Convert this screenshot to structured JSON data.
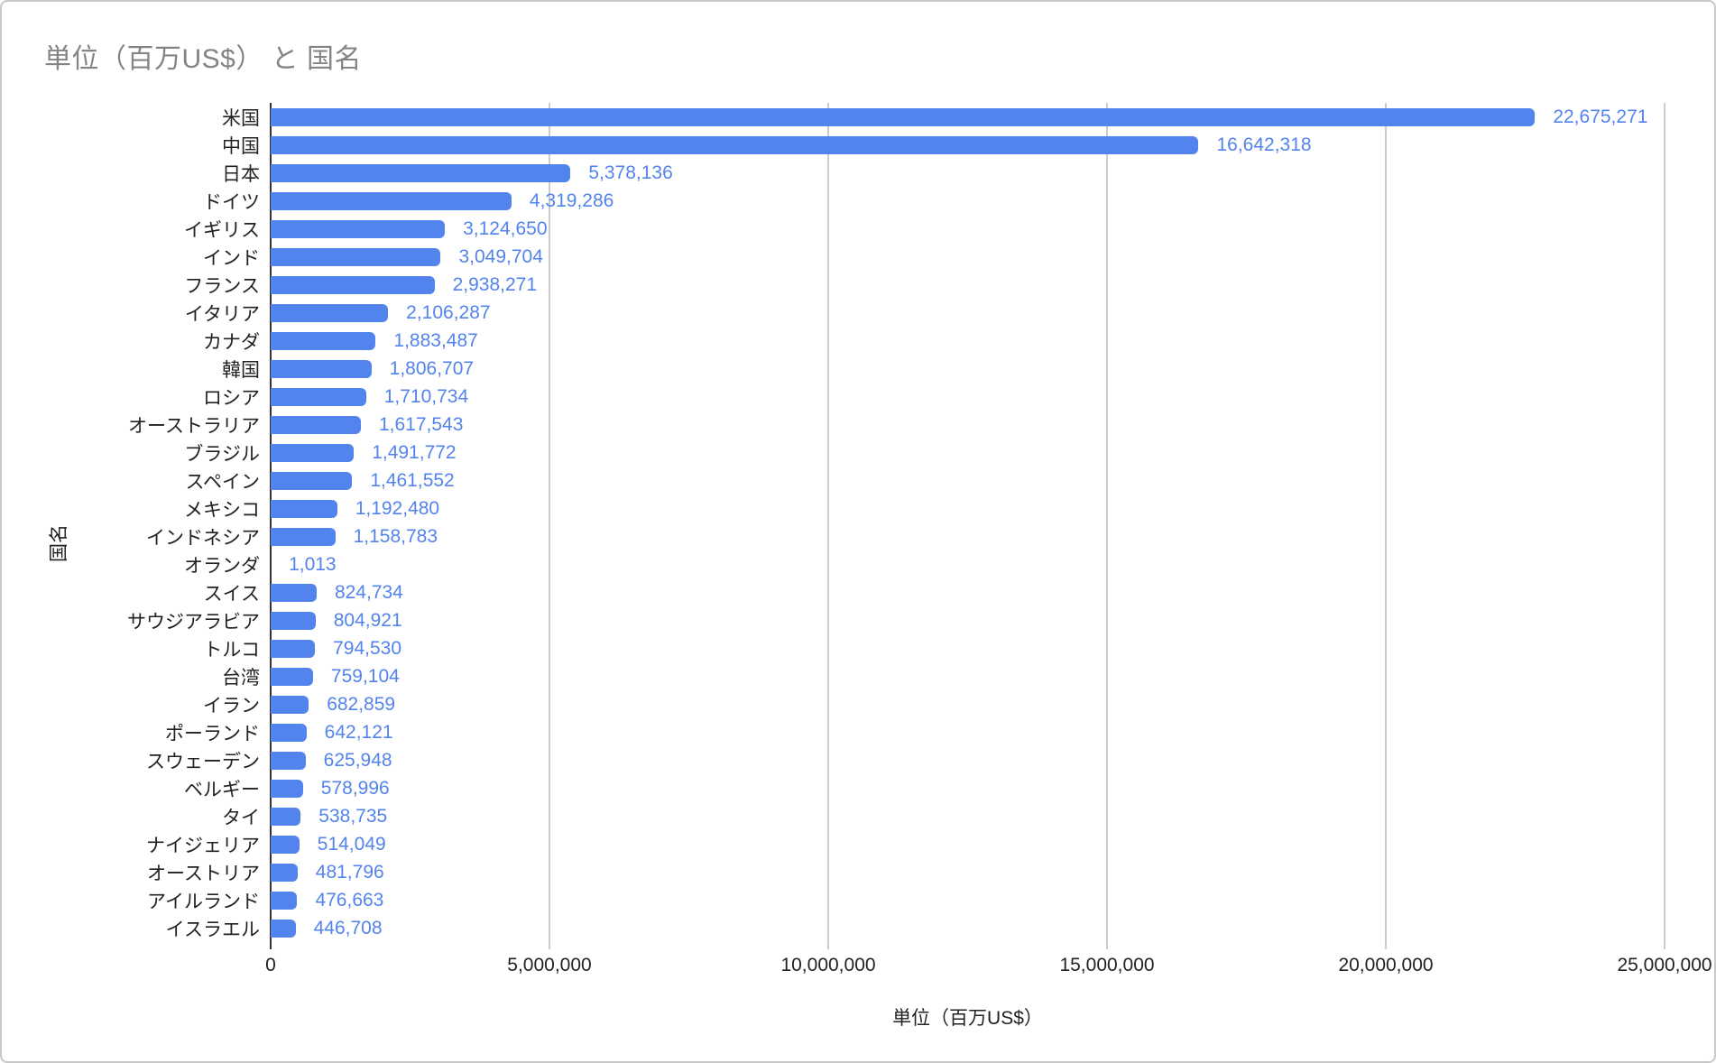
{
  "colors": {
    "bar": "#5383ec",
    "value_label": "#5383ec",
    "title": "#848484",
    "axis_text": "#222222",
    "gridline": "#cccccc",
    "axis_line": "#333333",
    "border": "#c8c8c8",
    "background": "#ffffff"
  },
  "chart_data": {
    "type": "bar",
    "orientation": "horizontal",
    "title": "単位（百万US$） と 国名",
    "xlabel": "単位（百万US$）",
    "ylabel": "国名",
    "xlim": [
      0,
      25000000
    ],
    "grid": true,
    "legend": false,
    "x_ticks": [
      {
        "value": 0,
        "label": "0"
      },
      {
        "value": 5000000,
        "label": "5,000,000"
      },
      {
        "value": 10000000,
        "label": "10,000,000"
      },
      {
        "value": 15000000,
        "label": "15,000,000"
      },
      {
        "value": 20000000,
        "label": "20,000,000"
      },
      {
        "value": 25000000,
        "label": "25,000,000"
      }
    ],
    "bars": [
      {
        "category": "米国",
        "value": 22675271,
        "label": "22,675,271"
      },
      {
        "category": "中国",
        "value": 16642318,
        "label": "16,642,318"
      },
      {
        "category": "日本",
        "value": 5378136,
        "label": "5,378,136"
      },
      {
        "category": "ドイツ",
        "value": 4319286,
        "label": "4,319,286"
      },
      {
        "category": "イギリス",
        "value": 3124650,
        "label": "3,124,650"
      },
      {
        "category": "インド",
        "value": 3049704,
        "label": "3,049,704"
      },
      {
        "category": "フランス",
        "value": 2938271,
        "label": "2,938,271"
      },
      {
        "category": "イタリア",
        "value": 2106287,
        "label": "2,106,287"
      },
      {
        "category": "カナダ",
        "value": 1883487,
        "label": "1,883,487"
      },
      {
        "category": "韓国",
        "value": 1806707,
        "label": "1,806,707"
      },
      {
        "category": "ロシア",
        "value": 1710734,
        "label": "1,710,734"
      },
      {
        "category": "オーストラリア",
        "value": 1617543,
        "label": "1,617,543"
      },
      {
        "category": "ブラジル",
        "value": 1491772,
        "label": "1,491,772"
      },
      {
        "category": "スペイン",
        "value": 1461552,
        "label": "1,461,552"
      },
      {
        "category": "メキシコ",
        "value": 1192480,
        "label": "1,192,480"
      },
      {
        "category": "インドネシア",
        "value": 1158783,
        "label": "1,158,783"
      },
      {
        "category": "オランダ",
        "value": 1013,
        "label": "1,013"
      },
      {
        "category": "スイス",
        "value": 824734,
        "label": "824,734"
      },
      {
        "category": "サウジアラビア",
        "value": 804921,
        "label": "804,921"
      },
      {
        "category": "トルコ",
        "value": 794530,
        "label": "794,530"
      },
      {
        "category": "台湾",
        "value": 759104,
        "label": "759,104"
      },
      {
        "category": "イラン",
        "value": 682859,
        "label": "682,859"
      },
      {
        "category": "ポーランド",
        "value": 642121,
        "label": "642,121"
      },
      {
        "category": "スウェーデン",
        "value": 625948,
        "label": "625,948"
      },
      {
        "category": "ベルギー",
        "value": 578996,
        "label": "578,996"
      },
      {
        "category": "タイ",
        "value": 538735,
        "label": "538,735"
      },
      {
        "category": "ナイジェリア",
        "value": 514049,
        "label": "514,049"
      },
      {
        "category": "オーストリア",
        "value": 481796,
        "label": "481,796"
      },
      {
        "category": "アイルランド",
        "value": 476663,
        "label": "476,663"
      },
      {
        "category": "イスラエル",
        "value": 446708,
        "label": "446,708"
      }
    ]
  }
}
